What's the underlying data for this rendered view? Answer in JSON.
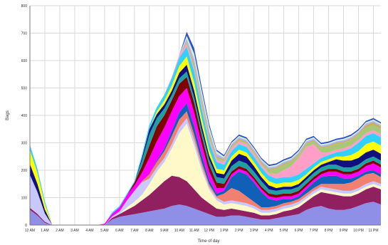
{
  "chart_data": {
    "type": "area",
    "stacked": true,
    "title": "",
    "xlabel": "Time of day",
    "ylabel": "Bags",
    "ylim": [
      0,
      800
    ],
    "yticks": [
      0,
      100,
      200,
      300,
      400,
      500,
      600,
      700,
      800
    ],
    "grid": true,
    "categories": [
      "12 AM",
      "1 AM",
      "2 AM",
      "3 AM",
      "4 AM",
      "5 AM",
      "6 AM",
      "7 AM",
      "8 AM",
      "9 AM",
      "10 AM",
      "11 AM",
      "12 PM",
      "1 PM",
      "2 PM",
      "3 PM",
      "4 PM",
      "5 PM",
      "6 PM",
      "7 PM",
      "8 PM",
      "9 PM",
      "10 PM",
      "11 PM"
    ],
    "x": [
      0,
      0.5,
      1,
      1.5,
      2,
      2.5,
      3,
      3.5,
      4,
      4.5,
      5,
      5.5,
      6,
      6.5,
      7,
      7.5,
      8,
      8.5,
      9,
      9.5,
      10,
      10.5,
      11,
      11.5,
      12,
      12.5,
      13,
      13.5,
      14,
      14.5,
      15,
      15.5,
      16,
      16.5,
      17,
      17.5,
      18,
      18.5,
      19,
      19.5,
      20,
      20.5,
      21,
      21.5,
      22,
      22.5,
      23,
      23.5
    ],
    "series": [
      {
        "color": "#8f8fe8",
        "values": [
          55,
          35,
          8,
          0,
          0,
          0,
          0,
          0,
          0,
          0,
          0,
          20,
          30,
          35,
          40,
          45,
          50,
          55,
          60,
          70,
          75,
          70,
          60,
          50,
          40,
          30,
          30,
          35,
          35,
          30,
          25,
          20,
          20,
          25,
          30,
          35,
          40,
          55,
          65,
          70,
          60,
          55,
          55,
          60,
          70,
          80,
          85,
          75
        ]
      },
      {
        "color": "#902060",
        "values": [
          8,
          6,
          4,
          0,
          0,
          0,
          0,
          0,
          0,
          0,
          0,
          6,
          10,
          20,
          30,
          45,
          60,
          80,
          100,
          110,
          100,
          90,
          70,
          50,
          40,
          30,
          25,
          25,
          20,
          20,
          20,
          15,
          15,
          15,
          20,
          20,
          25,
          30,
          40,
          50,
          55,
          55,
          50,
          45,
          45,
          50,
          55,
          55
        ]
      },
      {
        "color": "#fff8c8",
        "values": [
          0,
          0,
          0,
          0,
          0,
          0,
          0,
          0,
          0,
          0,
          0,
          0,
          0,
          10,
          15,
          20,
          40,
          60,
          70,
          100,
          160,
          210,
          160,
          100,
          50,
          30,
          20,
          20,
          20,
          20,
          15,
          10,
          10,
          10,
          10,
          10,
          10,
          10,
          10,
          10,
          10,
          10,
          10,
          10,
          10,
          10,
          10,
          10
        ]
      },
      {
        "color": "#c8c8ff",
        "values": [
          120,
          80,
          30,
          0,
          0,
          0,
          0,
          0,
          0,
          0,
          0,
          5,
          10,
          25,
          40,
          45,
          20,
          15,
          15,
          15,
          20,
          20,
          20,
          15,
          10,
          10,
          10,
          10,
          10,
          10,
          10,
          10,
          10,
          10,
          10,
          10,
          10,
          10,
          10,
          10,
          10,
          10,
          10,
          10,
          10,
          10,
          10,
          10
        ]
      },
      {
        "color": "#f28070",
        "values": [
          0,
          0,
          0,
          0,
          0,
          0,
          0,
          0,
          0,
          0,
          0,
          0,
          0,
          0,
          0,
          5,
          15,
          20,
          25,
          30,
          30,
          25,
          20,
          15,
          10,
          5,
          30,
          45,
          40,
          25,
          15,
          10,
          10,
          10,
          10,
          10,
          10,
          10,
          10,
          10,
          15,
          20,
          25,
          30,
          35,
          35,
          30,
          25
        ]
      },
      {
        "color": "#1060b8",
        "values": [
          0,
          0,
          0,
          0,
          0,
          0,
          0,
          0,
          0,
          0,
          0,
          0,
          0,
          0,
          0,
          0,
          0,
          5,
          10,
          20,
          25,
          30,
          30,
          25,
          15,
          10,
          10,
          40,
          70,
          80,
          70,
          55,
          30,
          20,
          15,
          10,
          10,
          15,
          20,
          25,
          30,
          30,
          20,
          15,
          10,
          10,
          10,
          10
        ]
      },
      {
        "color": "#ff00ff",
        "values": [
          0,
          0,
          0,
          0,
          0,
          0,
          0,
          0,
          0,
          0,
          5,
          10,
          15,
          20,
          20,
          30,
          60,
          70,
          75,
          70,
          60,
          55,
          50,
          40,
          30,
          20,
          10,
          10,
          10,
          10,
          10,
          10,
          10,
          10,
          10,
          10,
          10,
          10,
          10,
          10,
          15,
          15,
          15,
          15,
          15,
          20,
          25,
          25
        ]
      },
      {
        "color": "#800000",
        "values": [
          0,
          0,
          0,
          0,
          0,
          0,
          0,
          0,
          0,
          0,
          0,
          0,
          0,
          0,
          10,
          25,
          45,
          55,
          45,
          40,
          45,
          40,
          35,
          30,
          25,
          20,
          15,
          10,
          10,
          10,
          10,
          10,
          10,
          10,
          10,
          10,
          10,
          10,
          10,
          10,
          10,
          10,
          10,
          10,
          10,
          10,
          10,
          10
        ]
      },
      {
        "color": "#20a0a0",
        "values": [
          0,
          0,
          0,
          0,
          0,
          0,
          0,
          0,
          0,
          0,
          0,
          0,
          0,
          0,
          0,
          20,
          40,
          30,
          25,
          20,
          20,
          20,
          20,
          20,
          20,
          20,
          20,
          20,
          20,
          20,
          20,
          20,
          15,
          15,
          15,
          15,
          15,
          15,
          15,
          15,
          15,
          15,
          15,
          15,
          15,
          15,
          15,
          15
        ]
      },
      {
        "color": "#101080",
        "values": [
          40,
          30,
          15,
          0,
          0,
          0,
          0,
          0,
          0,
          0,
          0,
          0,
          0,
          0,
          0,
          10,
          20,
          15,
          15,
          15,
          20,
          25,
          25,
          20,
          15,
          15,
          15,
          20,
          25,
          25,
          20,
          15,
          15,
          10,
          10,
          10,
          10,
          10,
          10,
          10,
          10,
          20,
          25,
          25,
          25,
          25,
          25,
          25
        ]
      },
      {
        "color": "#ffff00",
        "values": [
          50,
          40,
          20,
          0,
          0,
          0,
          0,
          0,
          0,
          0,
          0,
          0,
          0,
          0,
          0,
          0,
          0,
          10,
          15,
          20,
          25,
          30,
          30,
          25,
          20,
          15,
          15,
          15,
          15,
          15,
          15,
          15,
          15,
          15,
          15,
          15,
          15,
          10,
          10,
          10,
          10,
          10,
          15,
          20,
          25,
          30,
          30,
          30
        ]
      },
      {
        "color": "#30d0ff",
        "values": [
          20,
          15,
          10,
          0,
          0,
          0,
          0,
          0,
          0,
          0,
          0,
          5,
          5,
          5,
          5,
          10,
          15,
          15,
          20,
          25,
          30,
          35,
          40,
          35,
          30,
          25,
          20,
          20,
          20,
          20,
          20,
          20,
          20,
          20,
          20,
          20,
          20,
          20,
          15,
          15,
          15,
          15,
          20,
          25,
          30,
          30,
          30,
          30
        ]
      },
      {
        "color": "#ff9fc8",
        "values": [
          0,
          0,
          0,
          0,
          0,
          0,
          0,
          0,
          0,
          0,
          0,
          0,
          0,
          0,
          0,
          0,
          0,
          0,
          0,
          5,
          10,
          10,
          10,
          10,
          10,
          10,
          10,
          10,
          10,
          10,
          10,
          10,
          10,
          15,
          25,
          40,
          60,
          80,
          70,
          20,
          10,
          10,
          10,
          10,
          10,
          10,
          10,
          10
        ]
      },
      {
        "color": "#a8c878",
        "values": [
          0,
          0,
          0,
          0,
          0,
          0,
          0,
          0,
          0,
          0,
          0,
          0,
          0,
          0,
          0,
          0,
          0,
          0,
          0,
          0,
          0,
          5,
          10,
          10,
          10,
          5,
          5,
          5,
          5,
          5,
          5,
          5,
          10,
          20,
          20,
          15,
          10,
          10,
          10,
          15,
          20,
          20,
          20,
          20,
          20,
          20,
          20,
          20
        ]
      },
      {
        "color": "#c8b060",
        "values": [
          0,
          0,
          0,
          0,
          0,
          0,
          0,
          0,
          0,
          0,
          0,
          0,
          0,
          0,
          0,
          0,
          0,
          0,
          0,
          0,
          0,
          5,
          10,
          10,
          10,
          5,
          5,
          5,
          5,
          5,
          5,
          5,
          5,
          5,
          5,
          5,
          5,
          5,
          5,
          5,
          5,
          5,
          5,
          5,
          5,
          10,
          10,
          10
        ]
      },
      {
        "color": "#b0b0ff",
        "values": [
          0,
          0,
          0,
          0,
          0,
          0,
          0,
          0,
          0,
          0,
          0,
          0,
          0,
          0,
          0,
          0,
          0,
          0,
          0,
          0,
          0,
          10,
          15,
          15,
          10,
          10,
          5,
          5,
          5,
          5,
          5,
          5,
          5,
          5,
          5,
          5,
          5,
          5,
          5,
          5,
          5,
          5,
          5,
          5,
          5,
          5,
          5,
          5
        ]
      },
      {
        "color": "#d0f0d0",
        "values": [
          0,
          0,
          0,
          0,
          0,
          0,
          0,
          0,
          0,
          0,
          0,
          0,
          0,
          0,
          0,
          0,
          0,
          0,
          0,
          0,
          0,
          10,
          20,
          20,
          15,
          10,
          5,
          5,
          5,
          5,
          5,
          5,
          5,
          5,
          5,
          5,
          5,
          5,
          5,
          5,
          5,
          5,
          5,
          5,
          5,
          5,
          5,
          5
        ]
      },
      {
        "color": "#3050c8",
        "values": [
          0,
          0,
          0,
          0,
          0,
          0,
          0,
          0,
          0,
          0,
          0,
          0,
          0,
          0,
          0,
          0,
          0,
          0,
          0,
          0,
          0,
          15,
          20,
          15,
          10,
          5,
          5,
          5,
          5,
          5,
          5,
          5,
          5,
          5,
          5,
          5,
          5,
          5,
          5,
          5,
          5,
          5,
          5,
          5,
          5,
          5,
          5,
          5
        ]
      }
    ]
  }
}
